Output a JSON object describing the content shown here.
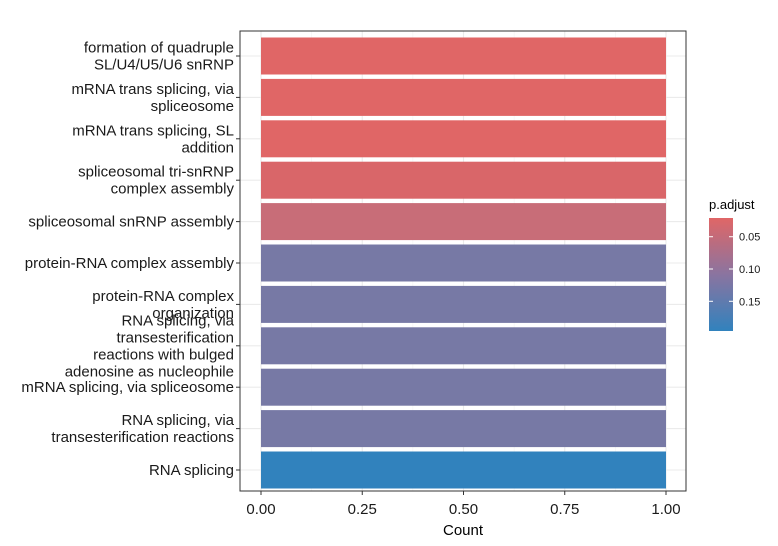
{
  "chart_data": {
    "type": "bar",
    "orientation": "horizontal",
    "xlabel": "Count",
    "ylabel": "",
    "xlim": [
      0,
      1
    ],
    "x_ticks": [
      "0.00",
      "0.25",
      "0.50",
      "0.75",
      "1.00"
    ],
    "grid": true,
    "legend_position": "right",
    "categories": [
      "formation of quadruple SL/U4/U5/U6 snRNP",
      "mRNA trans splicing, via spliceosome",
      "mRNA trans splicing, SL addition",
      "spliceosomal tri-snRNP complex assembly",
      "spliceosomal snRNP assembly",
      "protein-RNA complex assembly",
      "protein-RNA complex organization",
      "RNA splicing, via transesterification reactions with bulged adenosine as nucleophile",
      "mRNA splicing, via spliceosome",
      "RNA splicing, via transesterification reactions",
      "RNA splicing"
    ],
    "category_label_lines": [
      [
        "formation of quadruple",
        "SL/U4/U5/U6 snRNP"
      ],
      [
        "mRNA trans splicing, via",
        "spliceosome"
      ],
      [
        "mRNA trans splicing, SL",
        "addition"
      ],
      [
        "spliceosomal tri-snRNP",
        "complex assembly"
      ],
      [
        "spliceosomal snRNP assembly"
      ],
      [
        "protein-RNA complex assembly"
      ],
      [
        "protein-RNA complex",
        "organization"
      ],
      [
        "RNA splicing, via",
        "transesterification",
        "reactions with bulged",
        "adenosine as nucleophile"
      ],
      [
        "mRNA splicing, via spliceosome"
      ],
      [
        "RNA splicing, via",
        "transesterification reactions"
      ],
      [
        "RNA splicing"
      ]
    ],
    "values": [
      1,
      1,
      1,
      1,
      1,
      1,
      1,
      1,
      1,
      1,
      1
    ],
    "p_adjust": [
      0.021,
      0.021,
      0.021,
      0.032,
      0.078,
      0.118,
      0.118,
      0.118,
      0.118,
      0.118,
      0.196
    ],
    "colors": [
      "#e06666",
      "#e06666",
      "#e06666",
      "#d96669",
      "#c86d78",
      "#7779a5",
      "#7779a5",
      "#7779a5",
      "#7779a5",
      "#7779a5",
      "#3182bd"
    ],
    "legend": {
      "title": "p.adjust",
      "ticks": [
        {
          "label": "0.05",
          "value": 0.05
        },
        {
          "label": "0.10",
          "value": 0.1
        },
        {
          "label": "0.15",
          "value": 0.15
        }
      ],
      "range": [
        0.021,
        0.196
      ],
      "color_low": "#e06666",
      "color_high": "#3182bd"
    }
  }
}
